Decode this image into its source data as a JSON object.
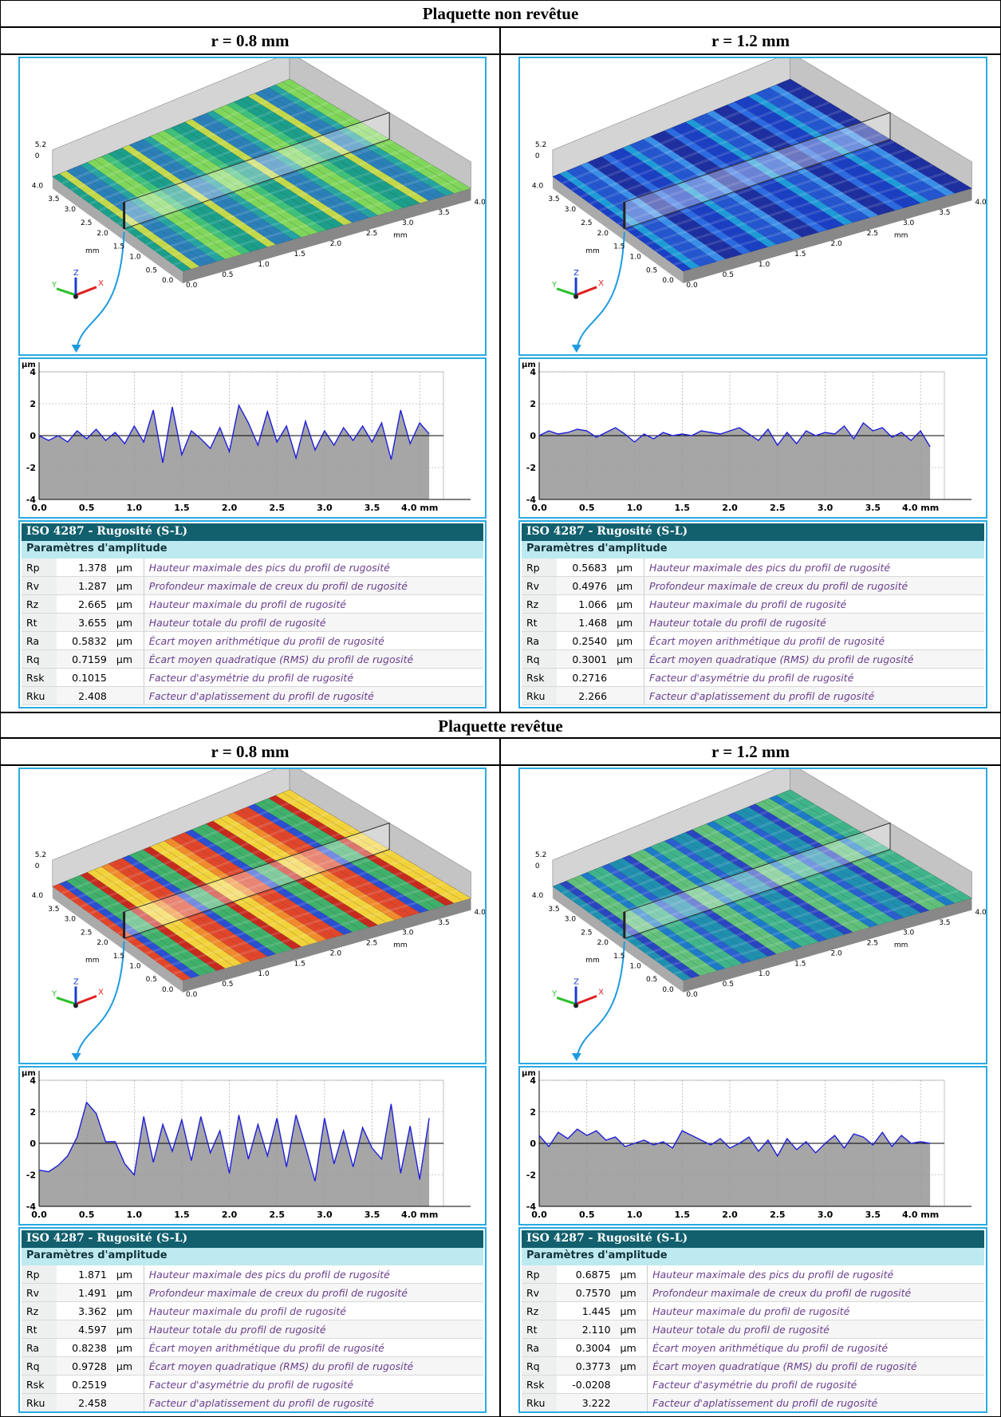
{
  "sections": [
    {
      "title": "Plaquette non revêtue",
      "panels": [
        {
          "label": "r = 0.8 mm",
          "surface": {
            "colors": [
              "#1b9e8a",
              "#3fc07a",
              "#7fd65a",
              "#24a3a0",
              "#2a7fb8",
              "#c2d84a"
            ]
          },
          "profile": {
            "x": [
              0,
              0.1,
              0.2,
              0.3,
              0.4,
              0.5,
              0.6,
              0.7,
              0.8,
              0.9,
              1,
              1.1,
              1.2,
              1.3,
              1.4,
              1.5,
              1.6,
              1.7,
              1.8,
              1.9,
              2,
              2.1,
              2.2,
              2.3,
              2.4,
              2.5,
              2.6,
              2.7,
              2.8,
              2.9,
              3,
              3.1,
              3.2,
              3.3,
              3.4,
              3.5,
              3.6,
              3.7,
              3.8,
              3.9,
              4,
              4.1
            ],
            "values": [
              0,
              -0.3,
              0,
              -0.4,
              0.3,
              -0.2,
              0.4,
              -0.3,
              0.2,
              -0.5,
              0.6,
              -0.4,
              1.6,
              -1.7,
              1.8,
              -1.2,
              0.3,
              -0.2,
              -0.8,
              0.5,
              -1.0,
              1.9,
              0.8,
              -0.6,
              1.5,
              -0.4,
              0.6,
              -1.4,
              0.9,
              -0.9,
              0.3,
              -0.6,
              0.5,
              -0.3,
              0.6,
              -0.4,
              0.8,
              -1.5,
              1.6,
              -0.5,
              0.8,
              0.1
            ]
          },
          "table": {
            "rows": [
              {
                "name": "Rp",
                "value": "1.378",
                "unit": "µm",
                "desc": "Hauteur maximale des pics du profil de rugosité"
              },
              {
                "name": "Rv",
                "value": "1.287",
                "unit": "µm",
                "desc": "Profondeur maximale de creux du profil de rugosité"
              },
              {
                "name": "Rz",
                "value": "2.665",
                "unit": "µm",
                "desc": "Hauteur maximale du profil de rugosité"
              },
              {
                "name": "Rt",
                "value": "3.655",
                "unit": "µm",
                "desc": "Hauteur totale du profil de rugosité"
              },
              {
                "name": "Ra",
                "value": "0.5832",
                "unit": "µm",
                "desc": "Écart moyen arithmétique du profil de rugosité"
              },
              {
                "name": "Rq",
                "value": "0.7159",
                "unit": "µm",
                "desc": "Écart moyen quadratique (RMS) du profil de rugosité"
              },
              {
                "name": "Rsk",
                "value": "0.1015",
                "desc": "Facteur d'asymétrie du profil de rugosité"
              },
              {
                "name": "Rku",
                "value": "2.408",
                "desc": "Facteur d'aplatissement du profil de rugosité"
              }
            ]
          }
        },
        {
          "label": "r = 1.2 mm",
          "surface": {
            "colors": [
              "#1a3fc4",
              "#2b6ae0",
              "#1d2fa0",
              "#3a8ee8",
              "#2356d0",
              "#1e9ad8"
            ]
          },
          "profile": {
            "x": [
              0,
              0.1,
              0.2,
              0.3,
              0.4,
              0.5,
              0.6,
              0.7,
              0.8,
              0.9,
              1,
              1.1,
              1.2,
              1.3,
              1.4,
              1.5,
              1.6,
              1.7,
              1.8,
              1.9,
              2,
              2.1,
              2.2,
              2.3,
              2.4,
              2.5,
              2.6,
              2.7,
              2.8,
              2.9,
              3,
              3.1,
              3.2,
              3.3,
              3.4,
              3.5,
              3.6,
              3.7,
              3.8,
              3.9,
              4,
              4.1
            ],
            "values": [
              0,
              0.3,
              0.1,
              0.2,
              0.4,
              0.3,
              -0.1,
              0.2,
              0.5,
              0.1,
              -0.4,
              0.1,
              -0.2,
              0.2,
              0.0,
              0.1,
              0.0,
              0.3,
              0.2,
              0.1,
              0.3,
              0.5,
              0.1,
              -0.3,
              0.4,
              -0.6,
              0.2,
              -0.5,
              0.3,
              0.0,
              0.2,
              0.1,
              0.6,
              -0.2,
              0.8,
              0.3,
              0.5,
              -0.1,
              0.2,
              -0.3,
              0.3,
              -0.7
            ]
          },
          "table": {
            "rows": [
              {
                "name": "Rp",
                "value": "0.5683",
                "unit": "µm",
                "desc": "Hauteur maximale des pics du profil de rugosité"
              },
              {
                "name": "Rv",
                "value": "0.4976",
                "unit": "µm",
                "desc": "Profondeur maximale de creux du profil de rugosité"
              },
              {
                "name": "Rz",
                "value": "1.066",
                "unit": "µm",
                "desc": "Hauteur maximale du profil de rugosité"
              },
              {
                "name": "Rt",
                "value": "1.468",
                "unit": "µm",
                "desc": "Hauteur totale du profil de rugosité"
              },
              {
                "name": "Ra",
                "value": "0.2540",
                "unit": "µm",
                "desc": "Écart moyen arithmétique du profil de rugosité"
              },
              {
                "name": "Rq",
                "value": "0.3001",
                "unit": "µm",
                "desc": "Écart moyen quadratique (RMS) du profil de rugosité"
              },
              {
                "name": "Rsk",
                "value": "0.2716",
                "desc": "Facteur d'asymétrie du profil de rugosité"
              },
              {
                "name": "Rku",
                "value": "2.266",
                "desc": "Facteur d'aplatissement du profil de rugosité"
              }
            ]
          }
        }
      ]
    },
    {
      "title": "Plaquette revêtue",
      "panels": [
        {
          "label": "r = 0.8 mm",
          "surface": {
            "colors": [
              "#e0452a",
              "#f08a2c",
              "#f2d23a",
              "#c62a1e",
              "#3fb06a",
              "#2a4fd0"
            ]
          },
          "profile": {
            "x": [
              0,
              0.1,
              0.2,
              0.3,
              0.4,
              0.5,
              0.6,
              0.7,
              0.8,
              0.9,
              1,
              1.1,
              1.2,
              1.3,
              1.4,
              1.5,
              1.6,
              1.7,
              1.8,
              1.9,
              2,
              2.1,
              2.2,
              2.3,
              2.4,
              2.5,
              2.6,
              2.7,
              2.8,
              2.9,
              3,
              3.1,
              3.2,
              3.3,
              3.4,
              3.5,
              3.6,
              3.7,
              3.8,
              3.9,
              4,
              4.1
            ],
            "values": [
              -1.7,
              -1.8,
              -1.4,
              -0.8,
              0.4,
              2.6,
              1.9,
              0.1,
              0.1,
              -1.3,
              -2.0,
              1.7,
              -1.2,
              1.2,
              -0.5,
              1.5,
              -1.1,
              1.7,
              -0.6,
              0.8,
              -1.9,
              1.8,
              -1.0,
              1.2,
              -0.8,
              1.6,
              -1.5,
              1.8,
              -0.2,
              -2.4,
              1.6,
              -1.3,
              0.8,
              -1.5,
              1.0,
              -0.3,
              -1.0,
              2.5,
              -1.9,
              1.1,
              -2.3,
              1.6
            ]
          },
          "table": {
            "rows": [
              {
                "name": "Rp",
                "value": "1.871",
                "unit": "µm",
                "desc": "Hauteur maximale des pics du profil de rugosité"
              },
              {
                "name": "Rv",
                "value": "1.491",
                "unit": "µm",
                "desc": "Profondeur maximale de creux du profil de rugosité"
              },
              {
                "name": "Rz",
                "value": "3.362",
                "unit": "µm",
                "desc": "Hauteur maximale du profil de rugosité"
              },
              {
                "name": "Rt",
                "value": "4.597",
                "unit": "µm",
                "desc": "Hauteur totale du profil de rugosité"
              },
              {
                "name": "Ra",
                "value": "0.8238",
                "unit": "µm",
                "desc": "Écart moyen arithmétique du profil de rugosité"
              },
              {
                "name": "Rq",
                "value": "0.9728",
                "unit": "µm",
                "desc": "Écart moyen quadratique (RMS) du profil de rugosité"
              },
              {
                "name": "Rsk",
                "value": "0.2519",
                "desc": "Facteur d'asymétrie du profil de rugosité"
              },
              {
                "name": "Rku",
                "value": "2.458",
                "desc": "Facteur d'aplatissement du profil de rugosité"
              }
            ]
          }
        },
        {
          "label": "r = 1.2 mm",
          "surface": {
            "colors": [
              "#1f8fb0",
              "#2a5fd0",
              "#3fb48a",
              "#1d7ac8",
              "#60c07a",
              "#2a45c0"
            ]
          },
          "profile": {
            "x": [
              0,
              0.1,
              0.2,
              0.3,
              0.4,
              0.5,
              0.6,
              0.7,
              0.8,
              0.9,
              1,
              1.1,
              1.2,
              1.3,
              1.4,
              1.5,
              1.6,
              1.7,
              1.8,
              1.9,
              2,
              2.1,
              2.2,
              2.3,
              2.4,
              2.5,
              2.6,
              2.7,
              2.8,
              2.9,
              3,
              3.1,
              3.2,
              3.3,
              3.4,
              3.5,
              3.6,
              3.7,
              3.8,
              3.9,
              4,
              4.1
            ],
            "values": [
              0.5,
              -0.2,
              0.7,
              0.3,
              0.9,
              0.5,
              0.8,
              0.2,
              0.4,
              -0.2,
              0.0,
              0.2,
              -0.1,
              0.1,
              -0.3,
              0.8,
              0.5,
              0.2,
              -0.1,
              0.3,
              -0.3,
              0.0,
              0.4,
              -0.5,
              0.2,
              -0.8,
              0.3,
              -0.4,
              0.1,
              -0.6,
              0.0,
              0.5,
              -0.3,
              0.6,
              0.4,
              -0.1,
              0.7,
              -0.2,
              0.5,
              0.0,
              0.1,
              0.0
            ]
          },
          "table": {
            "rows": [
              {
                "name": "Rp",
                "value": "0.6875",
                "unit": "µm",
                "desc": "Hauteur maximale des pics du profil de rugosité"
              },
              {
                "name": "Rv",
                "value": "0.7570",
                "unit": "µm",
                "desc": "Profondeur maximale de creux du profil de rugosité"
              },
              {
                "name": "Rz",
                "value": "1.445",
                "unit": "µm",
                "desc": "Hauteur maximale du profil de rugosité"
              },
              {
                "name": "Rt",
                "value": "2.110",
                "unit": "µm",
                "desc": "Hauteur totale du profil de rugosité"
              },
              {
                "name": "Ra",
                "value": "0.3004",
                "unit": "µm",
                "desc": "Écart moyen arithmétique du profil de rugosité"
              },
              {
                "name": "Rq",
                "value": "0.3773",
                "unit": "µm",
                "desc": "Écart moyen quadratique (RMS) du profil de rugosité"
              },
              {
                "name": "Rsk",
                "value": "-0.0208",
                "desc": "Facteur d'asymétrie du profil de rugosité"
              },
              {
                "name": "Rku",
                "value": "3.222",
                "desc": "Facteur d'aplatissement du profil de rugosité"
              }
            ]
          }
        }
      ]
    }
  ],
  "surface_axes": {
    "z_ticks": [
      "5.2",
      "0"
    ],
    "left_ticks": [
      "4.0",
      "3.5",
      "3.0",
      "2.5",
      "2.0",
      "1.5",
      "1.0",
      "0.5",
      "0.0"
    ],
    "right_ticks": [
      "0.0",
      "0.5",
      "1.0",
      "1.5",
      "2.0",
      "2.5",
      "3.0",
      "3.5",
      "4.0"
    ],
    "unit": "mm",
    "axes": [
      "X",
      "Y",
      "Z"
    ]
  },
  "profile_axis": {
    "y_label": "µm",
    "ylim": [
      -4,
      4
    ],
    "yticks": [
      -4,
      -2,
      0,
      2,
      4
    ],
    "xlim": [
      0,
      4.25
    ],
    "xticks": [
      {
        "value": 0,
        "label": "0.0"
      },
      {
        "value": 0.5,
        "label": "0.5"
      },
      {
        "value": 1,
        "label": "1.0"
      },
      {
        "value": 1.5,
        "label": "1.5"
      },
      {
        "value": 2,
        "label": "2.0"
      },
      {
        "value": 2.5,
        "label": "2.5"
      },
      {
        "value": 3,
        "label": "3.0"
      },
      {
        "value": 3.5,
        "label": "3.5"
      },
      {
        "value": 4,
        "label": "4.0 mm"
      }
    ]
  },
  "table_header": {
    "title": "ISO 4287 - Rugosité (S-L)",
    "subtitle": "Paramètres d'amplitude"
  }
}
